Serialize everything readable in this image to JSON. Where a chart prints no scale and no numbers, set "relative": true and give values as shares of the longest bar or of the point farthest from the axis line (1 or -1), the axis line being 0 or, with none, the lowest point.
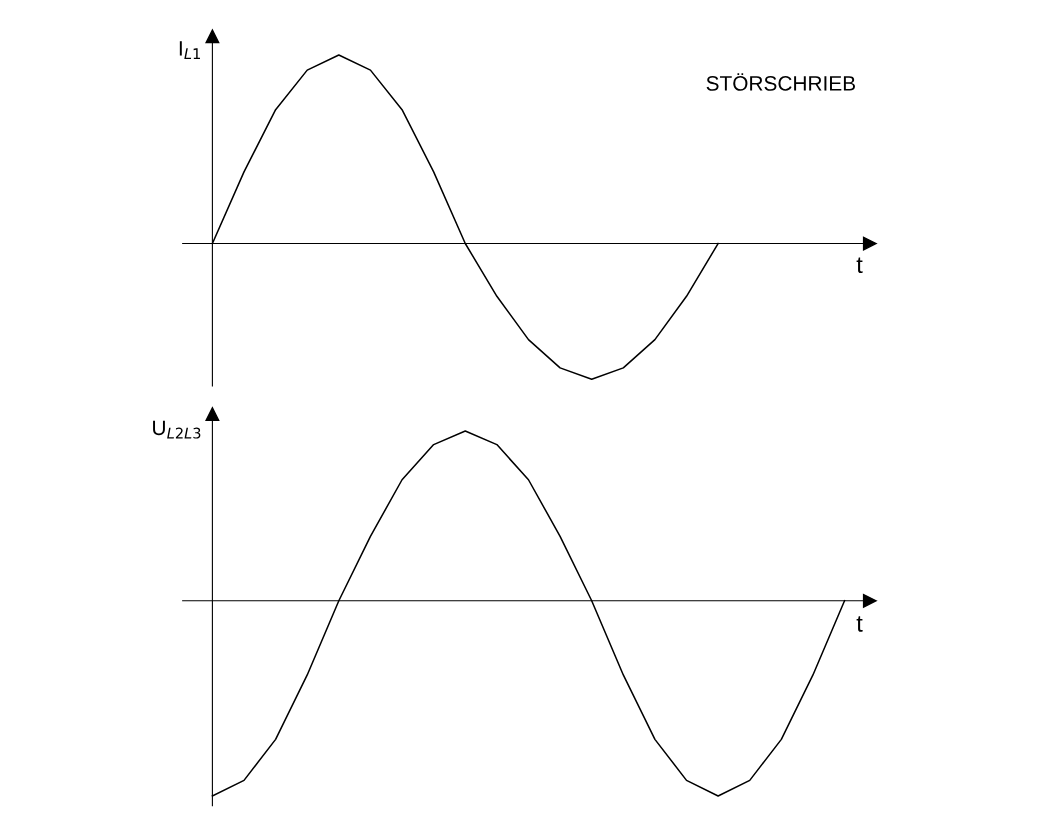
{
  "chart_data": [
    {
      "type": "line",
      "relative": true,
      "ylabel": "I$_{L1}$",
      "xlabel": "t",
      "tick_labels": false,
      "legend": false,
      "marker": "none",
      "line_style": "solid",
      "categories": [
        null,
        null,
        null,
        null,
        null,
        null,
        null,
        null,
        null,
        null,
        null,
        null,
        null,
        null,
        null,
        null,
        null
      ],
      "series": [
        {
          "color": "#000000",
          "values": [
            0,
            0.38,
            0.71,
            0.92,
            1.0,
            0.92,
            0.71,
            0.38,
            0,
            -0.28,
            -0.51,
            -0.66,
            -0.72,
            -0.66,
            -0.51,
            -0.28,
            0
          ]
        }
      ],
      "annotations": [
        "STÖRSCHRIEB"
      ]
    },
    {
      "type": "line",
      "relative": true,
      "ylabel": "U$_{L2L3}$",
      "xlabel": "t",
      "tick_labels": false,
      "legend": false,
      "marker": "none",
      "line_style": "solid",
      "categories": [
        null,
        null,
        null,
        null,
        null,
        null,
        null,
        null,
        null,
        null,
        null,
        null,
        null,
        null,
        null,
        null,
        null,
        null,
        null,
        null,
        null
      ],
      "series": [
        {
          "color": "#000000",
          "values": [
            -1,
            -0.92,
            -0.71,
            -0.38,
            0,
            0.33,
            0.62,
            0.8,
            0.87,
            0.8,
            0.62,
            0.33,
            0,
            -0.38,
            -0.71,
            -0.92,
            -1,
            -0.92,
            -0.71,
            -0.38,
            0
          ]
        }
      ]
    }
  ]
}
